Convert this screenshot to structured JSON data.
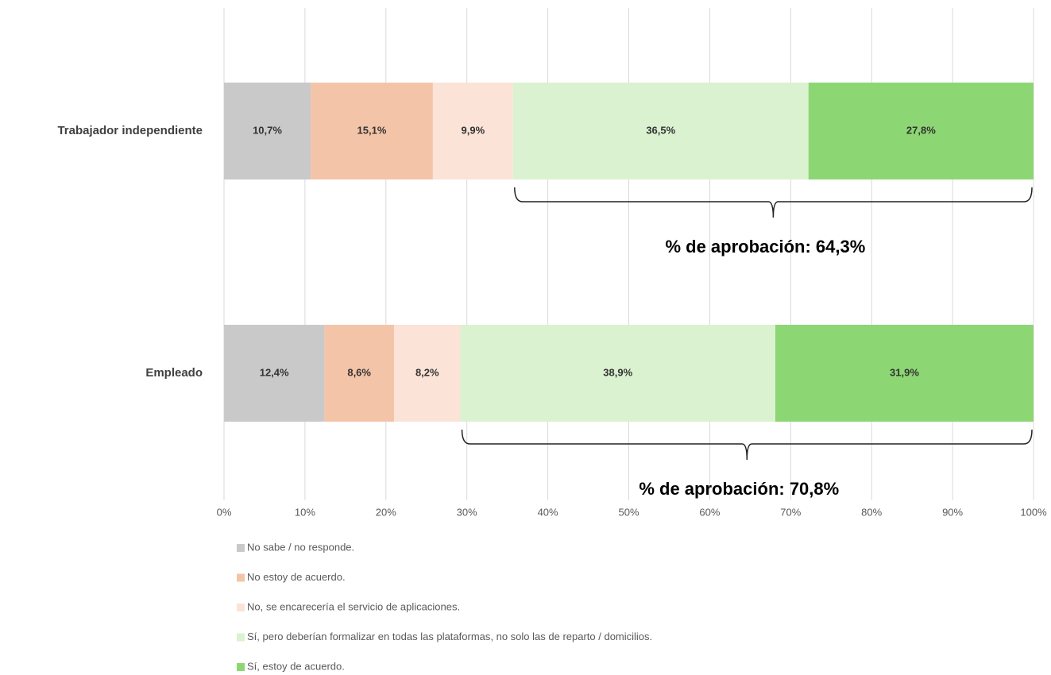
{
  "chart_data": {
    "type": "stacked_barh",
    "categories": [
      "Trabajador independiente",
      "Empleado"
    ],
    "series": [
      {
        "name": "No sabe / no responde.",
        "color": "#c9c9c9",
        "values": [
          10.7,
          12.4
        ],
        "value_labels": [
          "10,7%",
          "12,4%"
        ]
      },
      {
        "name": "No estoy de acuerdo.",
        "color": "#f4c4a9",
        "values": [
          15.1,
          8.6
        ],
        "value_labels": [
          "15,1%",
          "8,6%"
        ]
      },
      {
        "name": "No, se encarecería el servicio de aplicaciones.",
        "color": "#fbe3d7",
        "values": [
          9.9,
          8.2
        ],
        "value_labels": [
          "9,9%",
          "8,2%"
        ]
      },
      {
        "name": "Sí, pero deberían formalizar en todas las plataformas, no solo las de reparto / domicilios.",
        "color": "#daf2d0",
        "values": [
          36.5,
          38.9
        ],
        "value_labels": [
          "36,5%",
          "38,9%"
        ]
      },
      {
        "name": "Sí, estoy de acuerdo.",
        "color": "#8dd674",
        "values": [
          27.8,
          31.9
        ],
        "value_labels": [
          "27,8%",
          "31,9%"
        ]
      }
    ],
    "annotations": [
      "% de aprobación: 64,3%",
      "% de aprobación: 70,8%"
    ],
    "xlim": [
      0,
      100
    ],
    "xticks": [
      {
        "value": 0,
        "label": "0%"
      },
      {
        "value": 10,
        "label": "10%"
      },
      {
        "value": 20,
        "label": "20%"
      },
      {
        "value": 30,
        "label": "30%"
      },
      {
        "value": 40,
        "label": "40%"
      },
      {
        "value": 50,
        "label": "50%"
      },
      {
        "value": 60,
        "label": "60%"
      },
      {
        "value": 70,
        "label": "70%"
      },
      {
        "value": 80,
        "label": "80%"
      },
      {
        "value": 90,
        "label": "90%"
      },
      {
        "value": 100,
        "label": "100%"
      }
    ],
    "grid": true
  }
}
